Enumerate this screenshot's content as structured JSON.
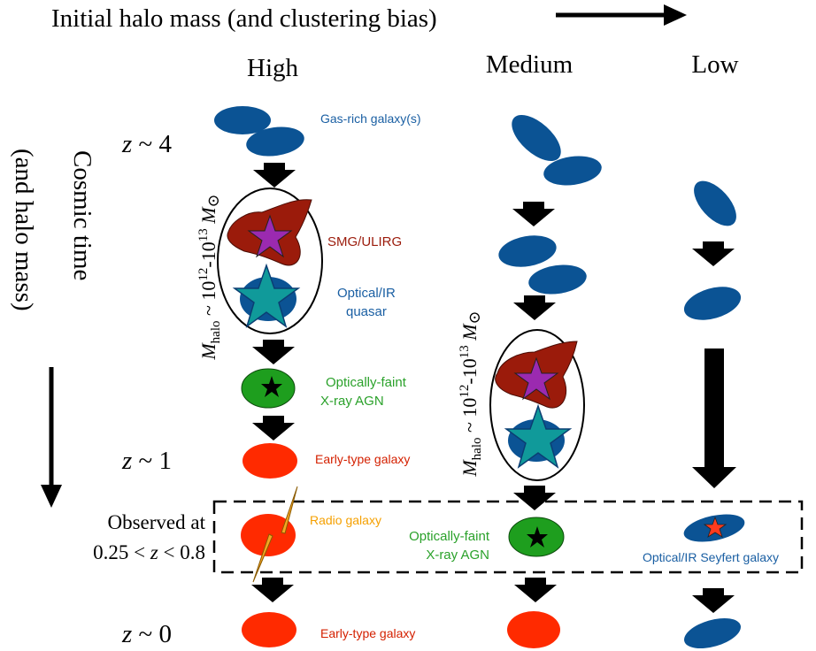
{
  "header": {
    "axis_title": "Initial halo mass (and clustering bias)"
  },
  "columns": {
    "high": "High",
    "medium": "Medium",
    "low": "Low"
  },
  "side_axis": {
    "line1": "Cosmic time",
    "line2": "(and halo mass)"
  },
  "redshift": {
    "z_var": "z",
    "z4": " ~ 4",
    "z1": " ~ 1",
    "z0": " ~ 0"
  },
  "observed": {
    "line1": "Observed at",
    "line2_pre": "0.25 < ",
    "line2_var": "z",
    "line2_post": " < 0.8"
  },
  "halo_label": {
    "m": "M",
    "sub": "halo",
    "mid": " ~ 10",
    "exp1": "12",
    "dash": "-10",
    "exp2": "13",
    "msun": " M",
    "sun": "⊙"
  },
  "labels": {
    "gas_rich": "Gas-rich galaxy(s)",
    "smg": "SMG/ULIRG",
    "quasar_1": "Optical/IR",
    "quasar_2": "quasar",
    "faint_1_high": "Optically-faint",
    "faint_2_high": "X-ray AGN",
    "early_type_1": "Early-type galaxy",
    "radio": "Radio galaxy",
    "faint_1_med": "Optically-faint",
    "faint_2_med": "X-ray AGN",
    "seyfert": "Optical/IR Seyfert galaxy",
    "early_type_0": "Early-type galaxy"
  },
  "colors": {
    "gas_blue": "#0b5394",
    "smg_red": "#9b1b0b",
    "quasar_teal": "#109a9a",
    "star_purple": "#9b2ab0",
    "agn_green": "#1e9e1e",
    "early_red": "#ff2a00",
    "radio_orange": "#f5a623",
    "seyfert_star": "#ff3b1e",
    "label_blue": "#1a5fa3",
    "label_red": "#d42000",
    "label_green": "#2aa12a",
    "label_orange": "#f5a000"
  }
}
